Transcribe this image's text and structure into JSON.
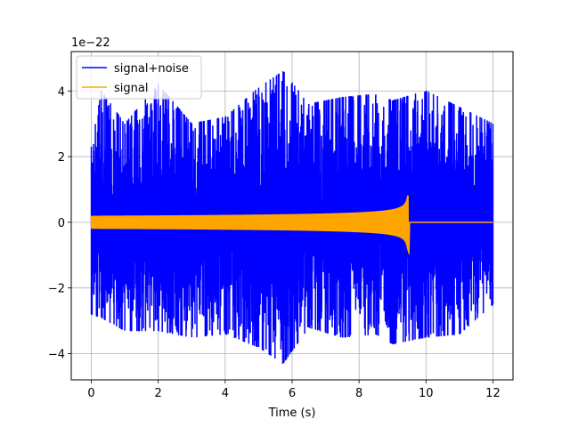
{
  "chart_data": {
    "type": "line",
    "title": "",
    "xlabel": "Time (s)",
    "ylabel": "",
    "y_offset_label": "1e−22",
    "xlim": [
      -0.6,
      12.6
    ],
    "ylim": [
      -4.8,
      5.2
    ],
    "x_ticks": [
      0,
      2,
      4,
      6,
      8,
      10,
      12
    ],
    "x_tick_labels": [
      "0",
      "2",
      "4",
      "6",
      "8",
      "10",
      "12"
    ],
    "y_ticks": [
      -4,
      -2,
      0,
      2,
      4
    ],
    "y_tick_labels": [
      "−4",
      "−2",
      "0",
      "2",
      "4"
    ],
    "grid": true,
    "legend_position": "top-left",
    "series": [
      {
        "name": "signal+noise",
        "color": "#0000ff",
        "description_points": [
          {
            "x": 0.0,
            "y_max": 2.3,
            "y_min": -2.8
          },
          {
            "x": 0.3,
            "y_max": 4.0,
            "y_min": -2.9
          },
          {
            "x": 1.0,
            "y_max": 3.0,
            "y_min": -3.3
          },
          {
            "x": 2.0,
            "y_max": 4.2,
            "y_min": -3.3
          },
          {
            "x": 3.0,
            "y_max": 3.0,
            "y_min": -3.5
          },
          {
            "x": 4.0,
            "y_max": 3.2,
            "y_min": -3.4
          },
          {
            "x": 5.0,
            "y_max": 4.1,
            "y_min": -3.8
          },
          {
            "x": 5.73,
            "y_max": 4.6,
            "y_min": -4.3
          },
          {
            "x": 6.5,
            "y_max": 3.6,
            "y_min": -3.2
          },
          {
            "x": 7.5,
            "y_max": 3.8,
            "y_min": -3.5
          },
          {
            "x": 8.5,
            "y_max": 3.9,
            "y_min": -3.4
          },
          {
            "x": 9.0,
            "y_max": 3.7,
            "y_min": -3.7
          },
          {
            "x": 10.0,
            "y_max": 4.0,
            "y_min": -3.5
          },
          {
            "x": 11.0,
            "y_max": 3.5,
            "y_min": -3.4
          },
          {
            "x": 12.0,
            "y_max": 3.0,
            "y_min": -2.5
          }
        ]
      },
      {
        "name": "signal",
        "color": "#ffa500",
        "t_start": 0.0,
        "t_merger": 9.47,
        "t_end": 12.0,
        "amplitude_start": 0.18,
        "amplitude_peak_positive": 0.8,
        "amplitude_peak_negative": -0.95,
        "post_merger_value": 0.0
      }
    ]
  }
}
